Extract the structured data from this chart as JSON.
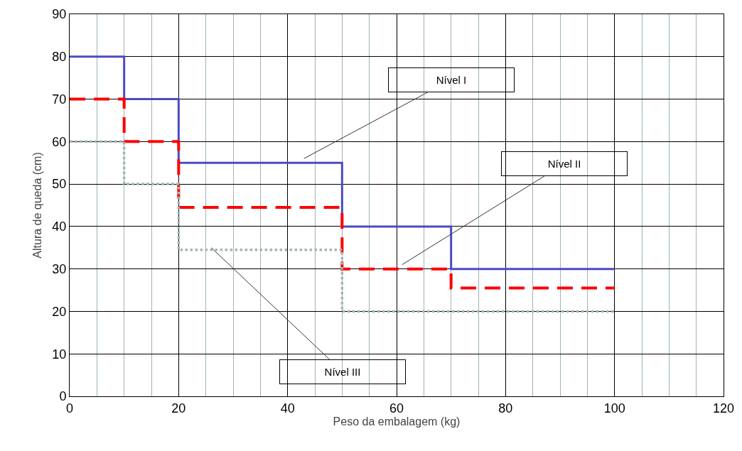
{
  "chart_data": {
    "type": "step",
    "xlabel": "Peso da embalagem (kg)",
    "ylabel": "Altura de queda (cm)",
    "x": [
      0,
      10,
      20,
      50,
      70,
      100
    ],
    "series": [
      {
        "color": "#4b4bc3",
        "line_style": "solid",
        "values": [
          80,
          70,
          55,
          40,
          30,
          30
        ]
      },
      {
        "color": "#ff0000",
        "line_style": "dashed",
        "values": [
          70,
          60,
          44.5,
          30,
          25.5,
          25.5
        ]
      },
      {
        "color": "#a3b4b6",
        "line_style": "dotted",
        "values": [
          60,
          50,
          34.5,
          20,
          20,
          20
        ]
      }
    ],
    "xlim": [
      0,
      120
    ],
    "xticks": [
      0,
      20,
      40,
      60,
      80,
      100,
      120
    ],
    "ylim": [
      0,
      90
    ],
    "yticks": [
      0,
      10,
      20,
      30,
      40,
      50,
      60,
      70,
      80,
      90
    ],
    "grid": true,
    "marker": "none",
    "annotations": [
      {
        "text": "Nível I",
        "x": 43,
        "y": 56
      },
      {
        "text": "Nível II",
        "x": 61,
        "y": 31
      },
      {
        "text": "Nível III",
        "x": 26,
        "y": 35
      }
    ]
  }
}
